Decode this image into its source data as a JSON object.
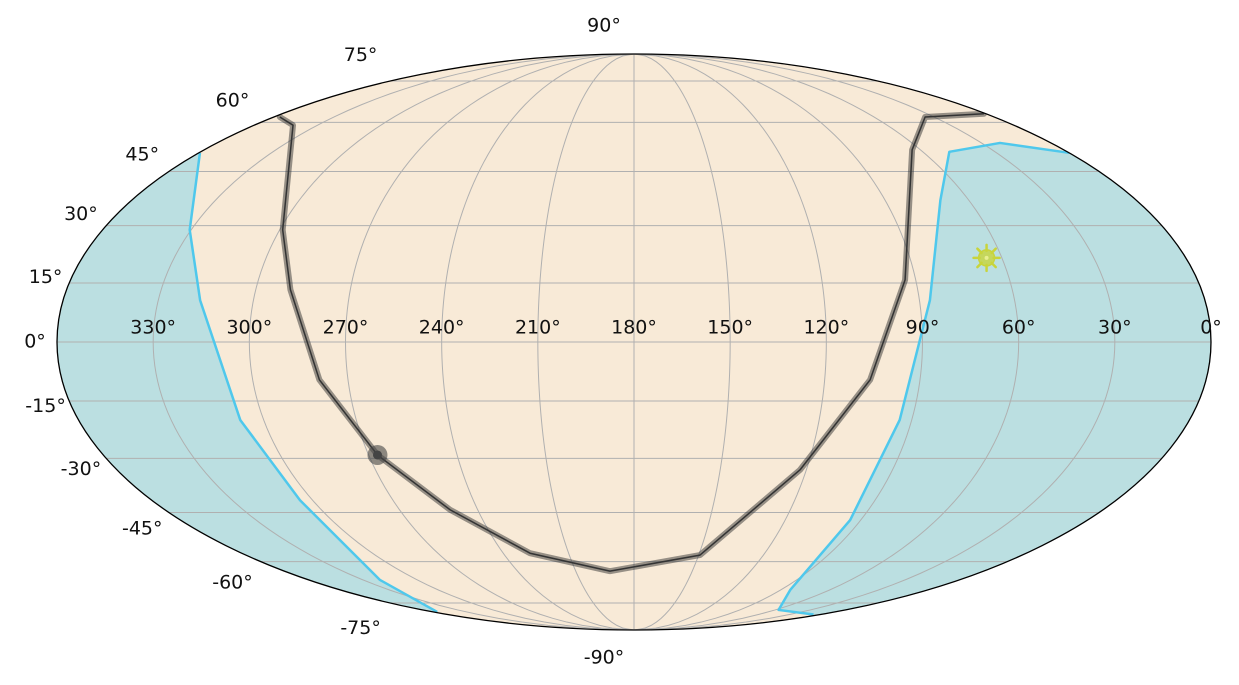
{
  "chart_data": {
    "type": "mollweide",
    "xlim": [
      360,
      0
    ],
    "ylim": [
      -90,
      90
    ],
    "grid": true,
    "grid_color": "#b0b0b0",
    "background": "#f8ead7",
    "xticks": [
      {
        "value": 330,
        "label": "330°"
      },
      {
        "value": 300,
        "label": "300°"
      },
      {
        "value": 270,
        "label": "270°"
      },
      {
        "value": 240,
        "label": "240°"
      },
      {
        "value": 210,
        "label": "210°"
      },
      {
        "value": 180,
        "label": "180°"
      },
      {
        "value": 150,
        "label": "150°"
      },
      {
        "value": 120,
        "label": "120°"
      },
      {
        "value": 90,
        "label": "90°"
      },
      {
        "value": 60,
        "label": "60°"
      },
      {
        "value": 30,
        "label": "30°"
      },
      {
        "value": 0,
        "label": "0°"
      }
    ],
    "yticks": [
      {
        "value": 90,
        "label": "90°"
      },
      {
        "value": 75,
        "label": "75°"
      },
      {
        "value": 60,
        "label": "60°"
      },
      {
        "value": 45,
        "label": "45°"
      },
      {
        "value": 30,
        "label": "30°"
      },
      {
        "value": 15,
        "label": "15°"
      },
      {
        "value": 0,
        "label": "0°"
      },
      {
        "value": -15,
        "label": "-15°"
      },
      {
        "value": -30,
        "label": "-30°"
      },
      {
        "value": -45,
        "label": "-45°"
      },
      {
        "value": -60,
        "label": "-60°"
      },
      {
        "value": -75,
        "label": "-75°"
      },
      {
        "value": -90,
        "label": "-90°"
      }
    ],
    "series": [
      {
        "kind": "region",
        "color": "#4fc8ec",
        "fill": "#bbdfe1",
        "x": [
          359.6,
          330.5,
          316.8,
          307.6,
          304.7,
          320.6,
          356,
          null,
          0,
          22,
          49,
          70.2,
          86.7,
          93.9,
          94.2,
          84.2,
          57,
          7
        ],
        "y": [
          50.5,
          28.9,
          10.6,
          -19.9,
          -41.5,
          -66.2,
          -78.9,
          null,
          50.5,
          53.5,
          50.8,
          36.9,
          10.6,
          -19.9,
          -47.2,
          -69.9,
          -78,
          -80.1
        ]
      },
      {
        "kind": "track",
        "color": "#333333",
        "x": [
          357,
          341.6,
          299,
          289,
          279,
          267,
          250.6,
          227.7,
          192.4,
          149.4,
          122.2,
          105.7,
          93.4,
          63.5,
          34.5,
          1
        ],
        "y": [
          61.8,
          59.1,
          28.9,
          13.3,
          -9.6,
          -29.1,
          -44.2,
          -57.3,
          -63.2,
          -57.9,
          -33.1,
          -9.6,
          15.8,
          51.4,
          61.8,
          62.9
        ]
      },
      {
        "kind": "sun",
        "color": "#c8d43c",
        "x": [
          65
        ],
        "y": [
          21.5
        ]
      },
      {
        "kind": "dot",
        "color": "#444444",
        "x": [
          267
        ],
        "y": [
          -29.1
        ]
      }
    ]
  }
}
